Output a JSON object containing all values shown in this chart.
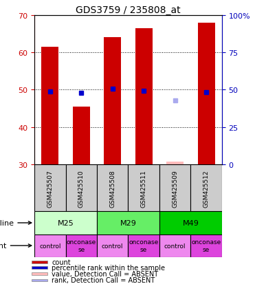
{
  "title": "GDS3759 / 235808_at",
  "samples": [
    "GSM425507",
    "GSM425510",
    "GSM425508",
    "GSM425511",
    "GSM425509",
    "GSM425512"
  ],
  "bar_values": [
    61.5,
    45.5,
    64.0,
    66.5,
    null,
    68.0
  ],
  "bar_color": "#cc0000",
  "bar_color_absent": "#ffbbbb",
  "absent_bar_value": 30.8,
  "percentile_values": [
    49.0,
    48.0,
    50.5,
    49.5,
    null,
    48.5
  ],
  "percentile_absent_value": 43.0,
  "percentile_color": "#0000cc",
  "percentile_color_absent": "#aaaaee",
  "ylim_left": [
    30,
    70
  ],
  "ylim_right": [
    0,
    100
  ],
  "yticks_left": [
    30,
    40,
    50,
    60,
    70
  ],
  "yticks_right": [
    0,
    25,
    50,
    75,
    100
  ],
  "ytick_labels_right": [
    "0",
    "25",
    "50",
    "75",
    "100%"
  ],
  "cell_lines": [
    {
      "label": "M25",
      "cols": [
        0,
        1
      ],
      "color": "#ccffcc"
    },
    {
      "label": "M29",
      "cols": [
        2,
        3
      ],
      "color": "#66ee66"
    },
    {
      "label": "M49",
      "cols": [
        4,
        5
      ],
      "color": "#00cc00"
    }
  ],
  "agents": [
    "control",
    "onconase\nse",
    "control",
    "onconase\nse",
    "control",
    "onconase\nse"
  ],
  "agent_color_control": "#ee88ee",
  "agent_color_onconase": "#dd44dd",
  "legend_items": [
    {
      "color": "#cc0000",
      "label": "count"
    },
    {
      "color": "#0000cc",
      "label": "percentile rank within the sample"
    },
    {
      "color": "#ffbbbb",
      "label": "value, Detection Call = ABSENT"
    },
    {
      "color": "#aaaaee",
      "label": "rank, Detection Call = ABSENT"
    }
  ],
  "left_tick_color": "#cc0000",
  "right_tick_color": "#0000bb",
  "sample_box_color": "#cccccc",
  "bar_width": 0.55
}
